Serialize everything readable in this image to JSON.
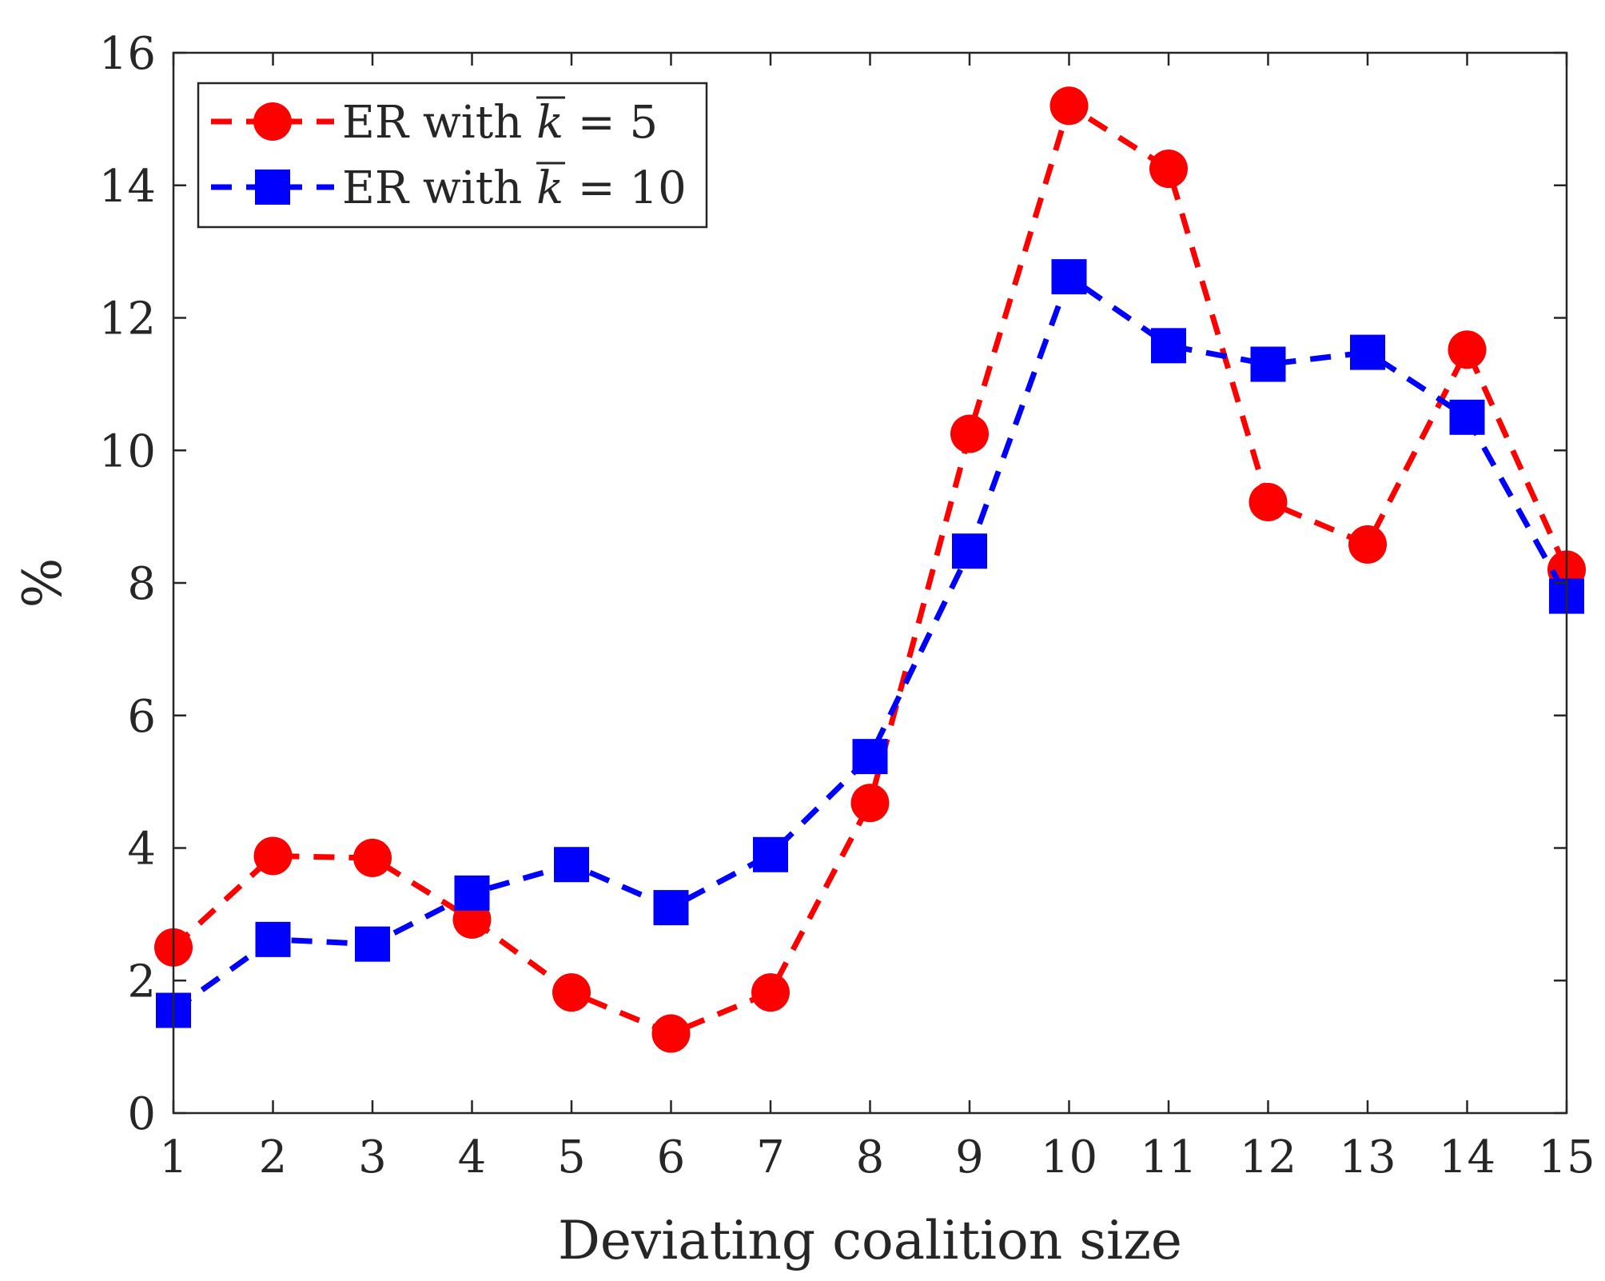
{
  "chart_data": {
    "type": "line",
    "title": "",
    "xlabel": "Deviating coalition size",
    "ylabel": "%",
    "categories": [
      1,
      2,
      3,
      4,
      5,
      6,
      7,
      8,
      9,
      10,
      11,
      12,
      13,
      14,
      15
    ],
    "x": [
      1,
      2,
      3,
      4,
      5,
      6,
      7,
      8,
      9,
      10,
      11,
      12,
      13,
      14,
      15
    ],
    "xlim": [
      1,
      15
    ],
    "ylim": [
      0,
      16
    ],
    "xticks": [
      1,
      2,
      3,
      4,
      5,
      6,
      7,
      8,
      9,
      10,
      11,
      12,
      13,
      14,
      15
    ],
    "yticks": [
      0,
      2,
      4,
      6,
      8,
      10,
      12,
      14,
      16
    ],
    "grid": false,
    "legend_position": "top-left",
    "series": [
      {
        "name": "ER with k̄ = 5",
        "legend_prefix": "ER with",
        "legend_symbol": "k",
        "legend_value": "= 5",
        "color": "#ff0000",
        "marker": "circle",
        "line_style": "dashed",
        "values": [
          2.5,
          3.88,
          3.85,
          2.92,
          1.82,
          1.2,
          1.82,
          4.68,
          10.25,
          15.2,
          14.25,
          9.22,
          8.58,
          11.52,
          8.2
        ]
      },
      {
        "name": "ER with k̄ = 10",
        "legend_prefix": "ER with",
        "legend_symbol": "k",
        "legend_value": "= 10",
        "color": "#0000ff",
        "marker": "square",
        "line_style": "dashed",
        "values": [
          1.55,
          2.62,
          2.55,
          3.32,
          3.75,
          3.1,
          3.9,
          5.38,
          8.48,
          12.62,
          11.58,
          11.3,
          11.48,
          10.5,
          7.8
        ]
      }
    ]
  }
}
